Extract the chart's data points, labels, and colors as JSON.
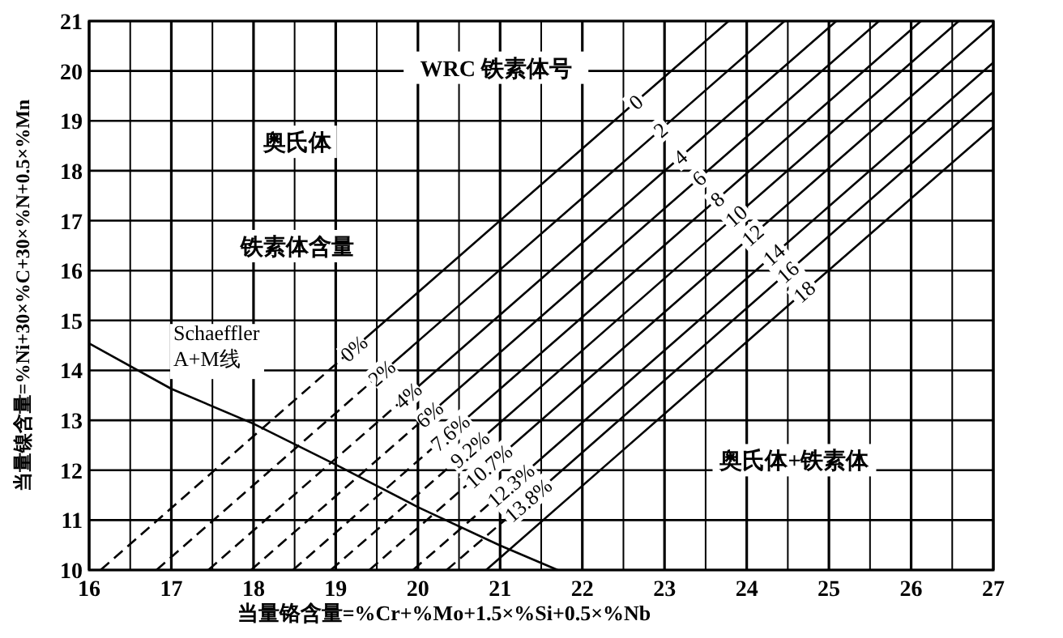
{
  "chart_data": {
    "type": "line",
    "xlabel": "当量铬含量=%Cr+%Mo+1.5×%Si+0.5×%Nb",
    "ylabel": "当量镍含量=%Ni+30×%C+30×%N+0.5×%Mn",
    "xlim": [
      16,
      27
    ],
    "ylim": [
      10,
      21
    ],
    "xticks": [
      16,
      {
        "value": 16.5,
        "label": null
      },
      17,
      {
        "value": 17.5,
        "label": null
      },
      18,
      {
        "value": 18.5,
        "label": null
      },
      19,
      {
        "value": 19.5,
        "label": null
      },
      20,
      {
        "value": 20.5,
        "label": null
      },
      21,
      {
        "value": 21.5,
        "label": null
      },
      22,
      {
        "value": 22.5,
        "label": null
      },
      23,
      {
        "value": 23.5,
        "label": null
      },
      24,
      {
        "value": 24.5,
        "label": null
      },
      25,
      {
        "value": 25.5,
        "label": null
      },
      26,
      {
        "value": 26.5,
        "label": null
      },
      27
    ],
    "yticks": [
      10,
      11,
      12,
      13,
      14,
      15,
      16,
      17,
      18,
      19,
      20,
      21
    ],
    "grid": true,
    "annotations": [
      "WRC 铁素体号",
      "奥氏体",
      "铁素体含量",
      "奥氏体+铁素体"
    ],
    "series": [
      {
        "name": "0",
        "line_style": "solid",
        "color": "#000000",
        "x": [
          19.22,
          22.65,
          23.78
        ],
        "values": [
          14.44,
          19.38,
          21
        ]
      },
      {
        "name": "2",
        "line_style": "solid",
        "color": "#000000",
        "x": [
          19.56,
          22.95,
          24.46
        ],
        "values": [
          13.95,
          18.82,
          21
        ]
      },
      {
        "name": "4",
        "line_style": "solid",
        "color": "#000000",
        "x": [
          19.88,
          23.19,
          25.09
        ],
        "values": [
          13.5,
          18.27,
          21
        ]
      },
      {
        "name": "6",
        "line_style": "solid",
        "color": "#000000",
        "x": [
          20.14,
          23.42,
          25.61
        ],
        "values": [
          13.12,
          17.85,
          21
        ]
      },
      {
        "name": "8",
        "line_style": "solid",
        "color": "#000000",
        "x": [
          20.39,
          23.64,
          26.12
        ],
        "values": [
          12.75,
          17.43,
          21
        ]
      },
      {
        "name": "10",
        "line_style": "solid",
        "color": "#000000",
        "x": [
          20.63,
          23.87,
          26.58
        ],
        "values": [
          12.42,
          17.1,
          21
        ]
      },
      {
        "name": "12",
        "line_style": "solid",
        "color": "#000000",
        "x": [
          20.86,
          24.07,
          27
        ],
        "values": [
          12.08,
          16.71,
          20.93
        ]
      },
      {
        "name": "14",
        "line_style": "solid",
        "color": "#000000",
        "x": [
          21.13,
          24.33,
          27
        ],
        "values": [
          11.7,
          16.32,
          20.17
        ]
      },
      {
        "name": "16",
        "line_style": "solid",
        "color": "#000000",
        "x": [
          21.34,
          24.5,
          27
        ],
        "values": [
          11.4,
          15.97,
          19.58
        ]
      },
      {
        "name": "18",
        "line_style": "solid",
        "color": "#000000",
        "x": [
          20.83,
          24.7,
          27
        ],
        "values": [
          10,
          15.58,
          18.88
        ]
      },
      {
        "name": "0%",
        "line_style": "dashed",
        "color": "#000000",
        "x": [
          16.14,
          19.22
        ],
        "values": [
          10,
          14.44
        ]
      },
      {
        "name": "2%",
        "line_style": "dashed",
        "color": "#000000",
        "x": [
          16.82,
          19.56
        ],
        "values": [
          10,
          13.95
        ]
      },
      {
        "name": "4%",
        "line_style": "dashed",
        "color": "#000000",
        "x": [
          17.45,
          19.88
        ],
        "values": [
          10,
          13.5
        ]
      },
      {
        "name": "6%",
        "line_style": "dashed",
        "color": "#000000",
        "x": [
          17.97,
          20.14
        ],
        "values": [
          10,
          13.12
        ]
      },
      {
        "name": "7.6%",
        "line_style": "dashed",
        "color": "#000000",
        "x": [
          18.48,
          20.39
        ],
        "values": [
          10,
          12.75
        ]
      },
      {
        "name": "9.2%",
        "line_style": "dashed",
        "color": "#000000",
        "x": [
          18.94,
          20.63
        ],
        "values": [
          10,
          12.42
        ]
      },
      {
        "name": "10.7%",
        "line_style": "dashed",
        "color": "#000000",
        "x": [
          19.41,
          20.86
        ],
        "values": [
          10,
          12.08
        ]
      },
      {
        "name": "12.3%",
        "line_style": "dashed",
        "color": "#000000",
        "x": [
          19.94,
          21.13
        ],
        "values": [
          10,
          11.7
        ]
      },
      {
        "name": "13.8%",
        "line_style": "dashed",
        "color": "#000000",
        "x": [
          20.35,
          21.34
        ],
        "values": [
          10,
          11.4
        ]
      },
      {
        "name": "Schaeffler A+M线",
        "line_style": "solid",
        "color": "#000000",
        "x": [
          16,
          17,
          18,
          19,
          20,
          21,
          21.7
        ],
        "values": [
          14.54,
          13.63,
          12.93,
          12.11,
          11.26,
          10.49,
          10
        ]
      }
    ]
  }
}
